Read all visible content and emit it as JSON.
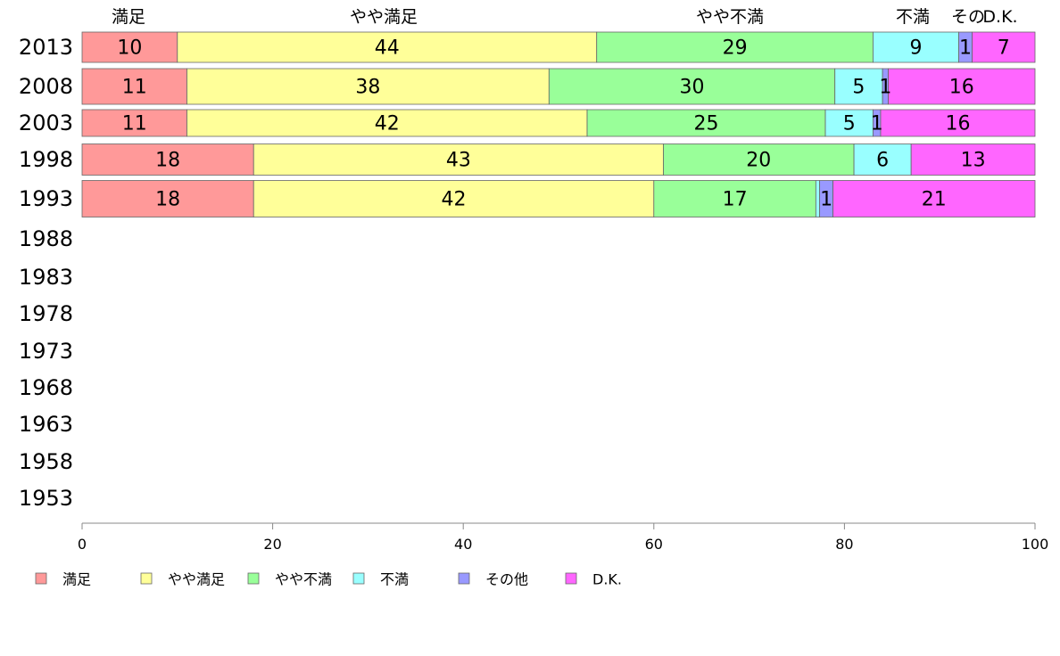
{
  "chart_data": {
    "type": "bar",
    "orientation": "horizontal",
    "stacked": true,
    "categories": [
      "2013",
      "2008",
      "2003",
      "1998",
      "1993",
      "1988",
      "1983",
      "1978",
      "1973",
      "1968",
      "1963",
      "1958",
      "1953"
    ],
    "series": [
      {
        "name": "満足",
        "top_label": "満足",
        "color": "#ff9999",
        "values": [
          10,
          11,
          11,
          18,
          18,
          null,
          null,
          null,
          null,
          null,
          null,
          null,
          null
        ],
        "labels": [
          "10",
          "11",
          "11",
          "18",
          "18"
        ]
      },
      {
        "name": "やや満足",
        "top_label": "やや満足",
        "color": "#ffff99",
        "values": [
          44,
          38,
          42,
          43,
          42,
          null,
          null,
          null,
          null,
          null,
          null,
          null,
          null
        ],
        "labels": [
          "44",
          "38",
          "42",
          "43",
          "42"
        ]
      },
      {
        "name": "やや不満",
        "top_label": "やや不満",
        "color": "#99ff99",
        "values": [
          29,
          30,
          25,
          20,
          17,
          null,
          null,
          null,
          null,
          null,
          null,
          null,
          null
        ],
        "labels": [
          "29",
          "30",
          "25",
          "20",
          "17"
        ]
      },
      {
        "name": "不満",
        "top_label": "不満",
        "color": "#99ffff",
        "values": [
          9,
          5,
          5,
          6,
          0.4,
          null,
          null,
          null,
          null,
          null,
          null,
          null,
          null
        ],
        "labels": [
          "9",
          "5",
          "5",
          "6",
          ""
        ]
      },
      {
        "name": "その他",
        "top_label": "その",
        "color": "#9999ff",
        "values": [
          1.4,
          0.6,
          0.8,
          0,
          1.4,
          null,
          null,
          null,
          null,
          null,
          null,
          null,
          null
        ],
        "labels": [
          "1",
          "1",
          "1",
          "",
          "1"
        ]
      },
      {
        "name": "D.K.",
        "top_label": "D.K.",
        "color": "#ff66ff",
        "values": [
          7,
          16,
          16,
          13,
          21,
          null,
          null,
          null,
          null,
          null,
          null,
          null,
          null
        ],
        "labels": [
          "7",
          "16",
          "16",
          "13",
          "21"
        ]
      }
    ],
    "xlim": [
      0,
      100
    ],
    "xticks": [
      0,
      20,
      40,
      60,
      80,
      100
    ],
    "title": "",
    "xlabel": "",
    "ylabel": "",
    "grid": false,
    "legend_position": "bottom-left"
  }
}
